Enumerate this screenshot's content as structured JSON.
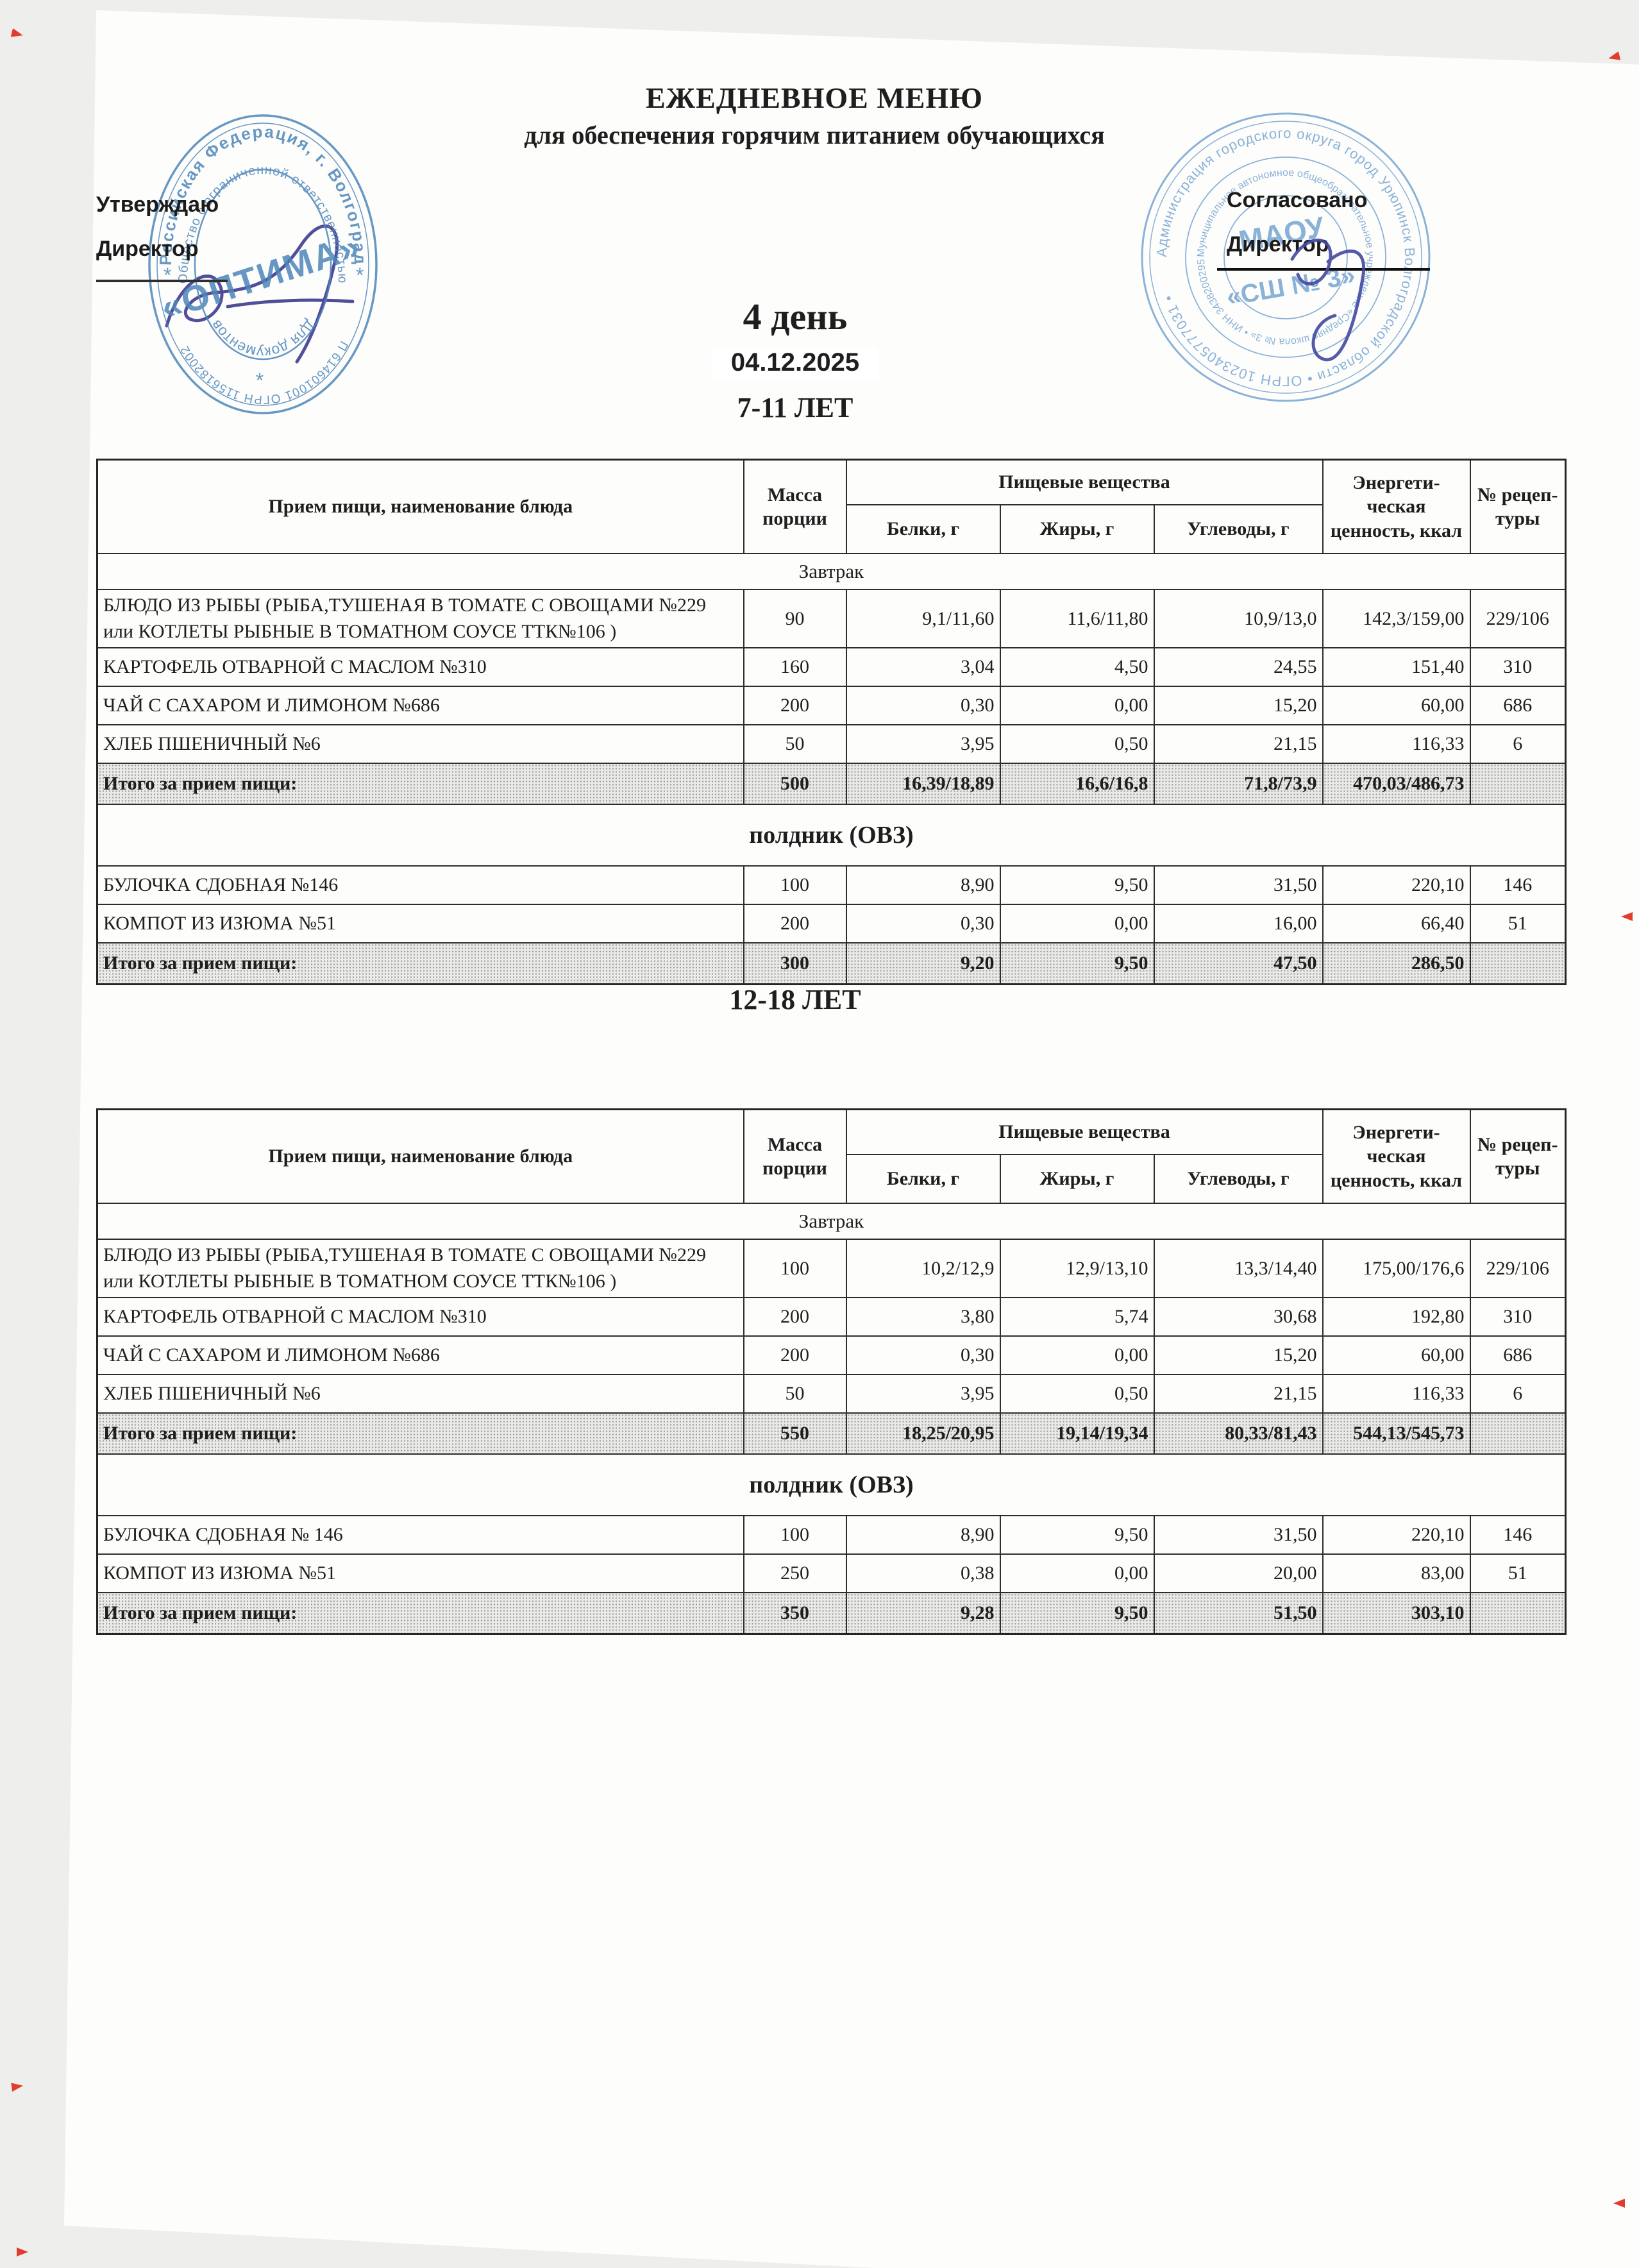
{
  "document": {
    "title_line1": "ЕЖЕДНЕВНОЕ МЕНЮ",
    "title_line2": "для обеспечения горячим питанием обучающихся",
    "day_heading": "4 день",
    "date": "04.12.2025",
    "approve_left": {
      "line1": "Утверждаю",
      "line2": "Директор"
    },
    "approve_right": {
      "line1": "Согласовано",
      "line2": "Директор"
    },
    "stamp_left": {
      "ring_top": "Российская Федерация, г. Волгоград",
      "ring_middle": "Общество с ограниченной ответственностью",
      "ring_bottom": "КПП 614601001 ОГРН 1156182002492",
      "inner_bottom": "Для документов",
      "center": "«ОПТИМА»",
      "star": "*"
    },
    "stamp_right": {
      "ring_outer": "Администрация городского округа город Урюпинск Волгоградской области • ОГРН 1023405777031 •",
      "ring_inner": "Муниципальное автономное общеобразовательное учреждение «Средняя школа № 3» • ИНН 3438200295 •",
      "center_line1": "МАОУ",
      "center_line2": "«СШ № 3»"
    }
  },
  "colors": {
    "stamp_blue": "#4d86ba",
    "stamp_blue_light": "#6ea0cf",
    "signature_ink": "#3f3c8f",
    "corner_mark_red": "#e23c2c",
    "total_row_bg": "#eaeae8"
  },
  "table_header": {
    "meal": "Прием пищи, наименование блюда",
    "mass": "Масса порции",
    "nutrients": "Пищевые вещества",
    "protein": "Белки, г",
    "fat": "Жиры, г",
    "carbs": "Углеводы, г",
    "energy": "Энергети-ческая ценность, ккал",
    "recipe": "№ рецеп-туры"
  },
  "tables": [
    {
      "age_group": "7-11 ЛЕТ",
      "sections": [
        {
          "label": "Завтрак",
          "rows": [
            {
              "name": "БЛЮДО ИЗ РЫБЫ (РЫБА,ТУШЕНАЯ В ТОМАТЕ С ОВОЩАМИ №229 или КОТЛЕТЫ РЫБНЫЕ В ТОМАТНОМ СОУСЕ ТТК№106 )",
              "mass": "90",
              "protein": "9,1/11,60",
              "fat": "11,6/11,80",
              "carbs": "10,9/13,0",
              "energy": "142,3/159,00",
              "recipe": "229/106"
            },
            {
              "name": "КАРТОФЕЛЬ ОТВАРНОЙ С МАСЛОМ №310",
              "mass": "160",
              "protein": "3,04",
              "fat": "4,50",
              "carbs": "24,55",
              "energy": "151,40",
              "recipe": "310"
            },
            {
              "name": "ЧАЙ С САХАРОМ И ЛИМОНОМ №686",
              "mass": "200",
              "protein": "0,30",
              "fat": "0,00",
              "carbs": "15,20",
              "energy": "60,00",
              "recipe": "686"
            },
            {
              "name": "ХЛЕБ ПШЕНИЧНЫЙ №6",
              "mass": "50",
              "protein": "3,95",
              "fat": "0,50",
              "carbs": "21,15",
              "energy": "116,33",
              "recipe": "6"
            }
          ],
          "total": {
            "name": "Итого за прием пищи:",
            "mass": "500",
            "protein": "16,39/18,89",
            "fat": "16,6/16,8",
            "carbs": "71,8/73,9",
            "energy": "470,03/486,73",
            "recipe": ""
          }
        },
        {
          "label": "полдник (ОВЗ)",
          "rows": [
            {
              "name": "БУЛОЧКА СДОБНАЯ  №146",
              "mass": "100",
              "protein": "8,90",
              "fat": "9,50",
              "carbs": "31,50",
              "energy": "220,10",
              "recipe": "146"
            },
            {
              "name": "КОМПОТ ИЗ ИЗЮМА №51",
              "mass": "200",
              "protein": "0,30",
              "fat": "0,00",
              "carbs": "16,00",
              "energy": "66,40",
              "recipe": "51"
            }
          ],
          "total": {
            "name": "Итого за прием пищи:",
            "mass": "300",
            "protein": "9,20",
            "fat": "9,50",
            "carbs": "47,50",
            "energy": "286,50",
            "recipe": ""
          }
        }
      ]
    },
    {
      "age_group": "12-18 ЛЕТ",
      "sections": [
        {
          "label": "Завтрак",
          "rows": [
            {
              "name": "БЛЮДО ИЗ РЫБЫ (РЫБА,ТУШЕНАЯ В ТОМАТЕ С ОВОЩАМИ №229 или КОТЛЕТЫ РЫБНЫЕ В ТОМАТНОМ СОУСЕ ТТК№106 )",
              "mass": "100",
              "protein": "10,2/12,9",
              "fat": "12,9/13,10",
              "carbs": "13,3/14,40",
              "energy": "175,00/176,6",
              "recipe": "229/106"
            },
            {
              "name": "КАРТОФЕЛЬ ОТВАРНОЙ С МАСЛОМ №310",
              "mass": "200",
              "protein": "3,80",
              "fat": "5,74",
              "carbs": "30,68",
              "energy": "192,80",
              "recipe": "310"
            },
            {
              "name": "ЧАЙ С САХАРОМ И ЛИМОНОМ №686",
              "mass": "200",
              "protein": "0,30",
              "fat": "0,00",
              "carbs": "15,20",
              "energy": "60,00",
              "recipe": "686"
            },
            {
              "name": "ХЛЕБ ПШЕНИЧНЫЙ №6",
              "mass": "50",
              "protein": "3,95",
              "fat": "0,50",
              "carbs": "21,15",
              "energy": "116,33",
              "recipe": "6"
            }
          ],
          "total": {
            "name": "Итого за прием пищи:",
            "mass": "550",
            "protein": "18,25/20,95",
            "fat": "19,14/19,34",
            "carbs": "80,33/81,43",
            "energy": "544,13/545,73",
            "recipe": ""
          }
        },
        {
          "label": "полдник (ОВЗ)",
          "rows": [
            {
              "name": "БУЛОЧКА СДОБНАЯ № 146",
              "mass": "100",
              "protein": "8,90",
              "fat": "9,50",
              "carbs": "31,50",
              "energy": "220,10",
              "recipe": "146"
            },
            {
              "name": "КОМПОТ ИЗ ИЗЮМА №51",
              "mass": "250",
              "protein": "0,38",
              "fat": "0,00",
              "carbs": "20,00",
              "energy": "83,00",
              "recipe": "51"
            }
          ],
          "total": {
            "name": "Итого за прием пищи:",
            "mass": "350",
            "protein": "9,28",
            "fat": "9,50",
            "carbs": "51,50",
            "energy": "303,10",
            "recipe": ""
          }
        }
      ]
    }
  ]
}
